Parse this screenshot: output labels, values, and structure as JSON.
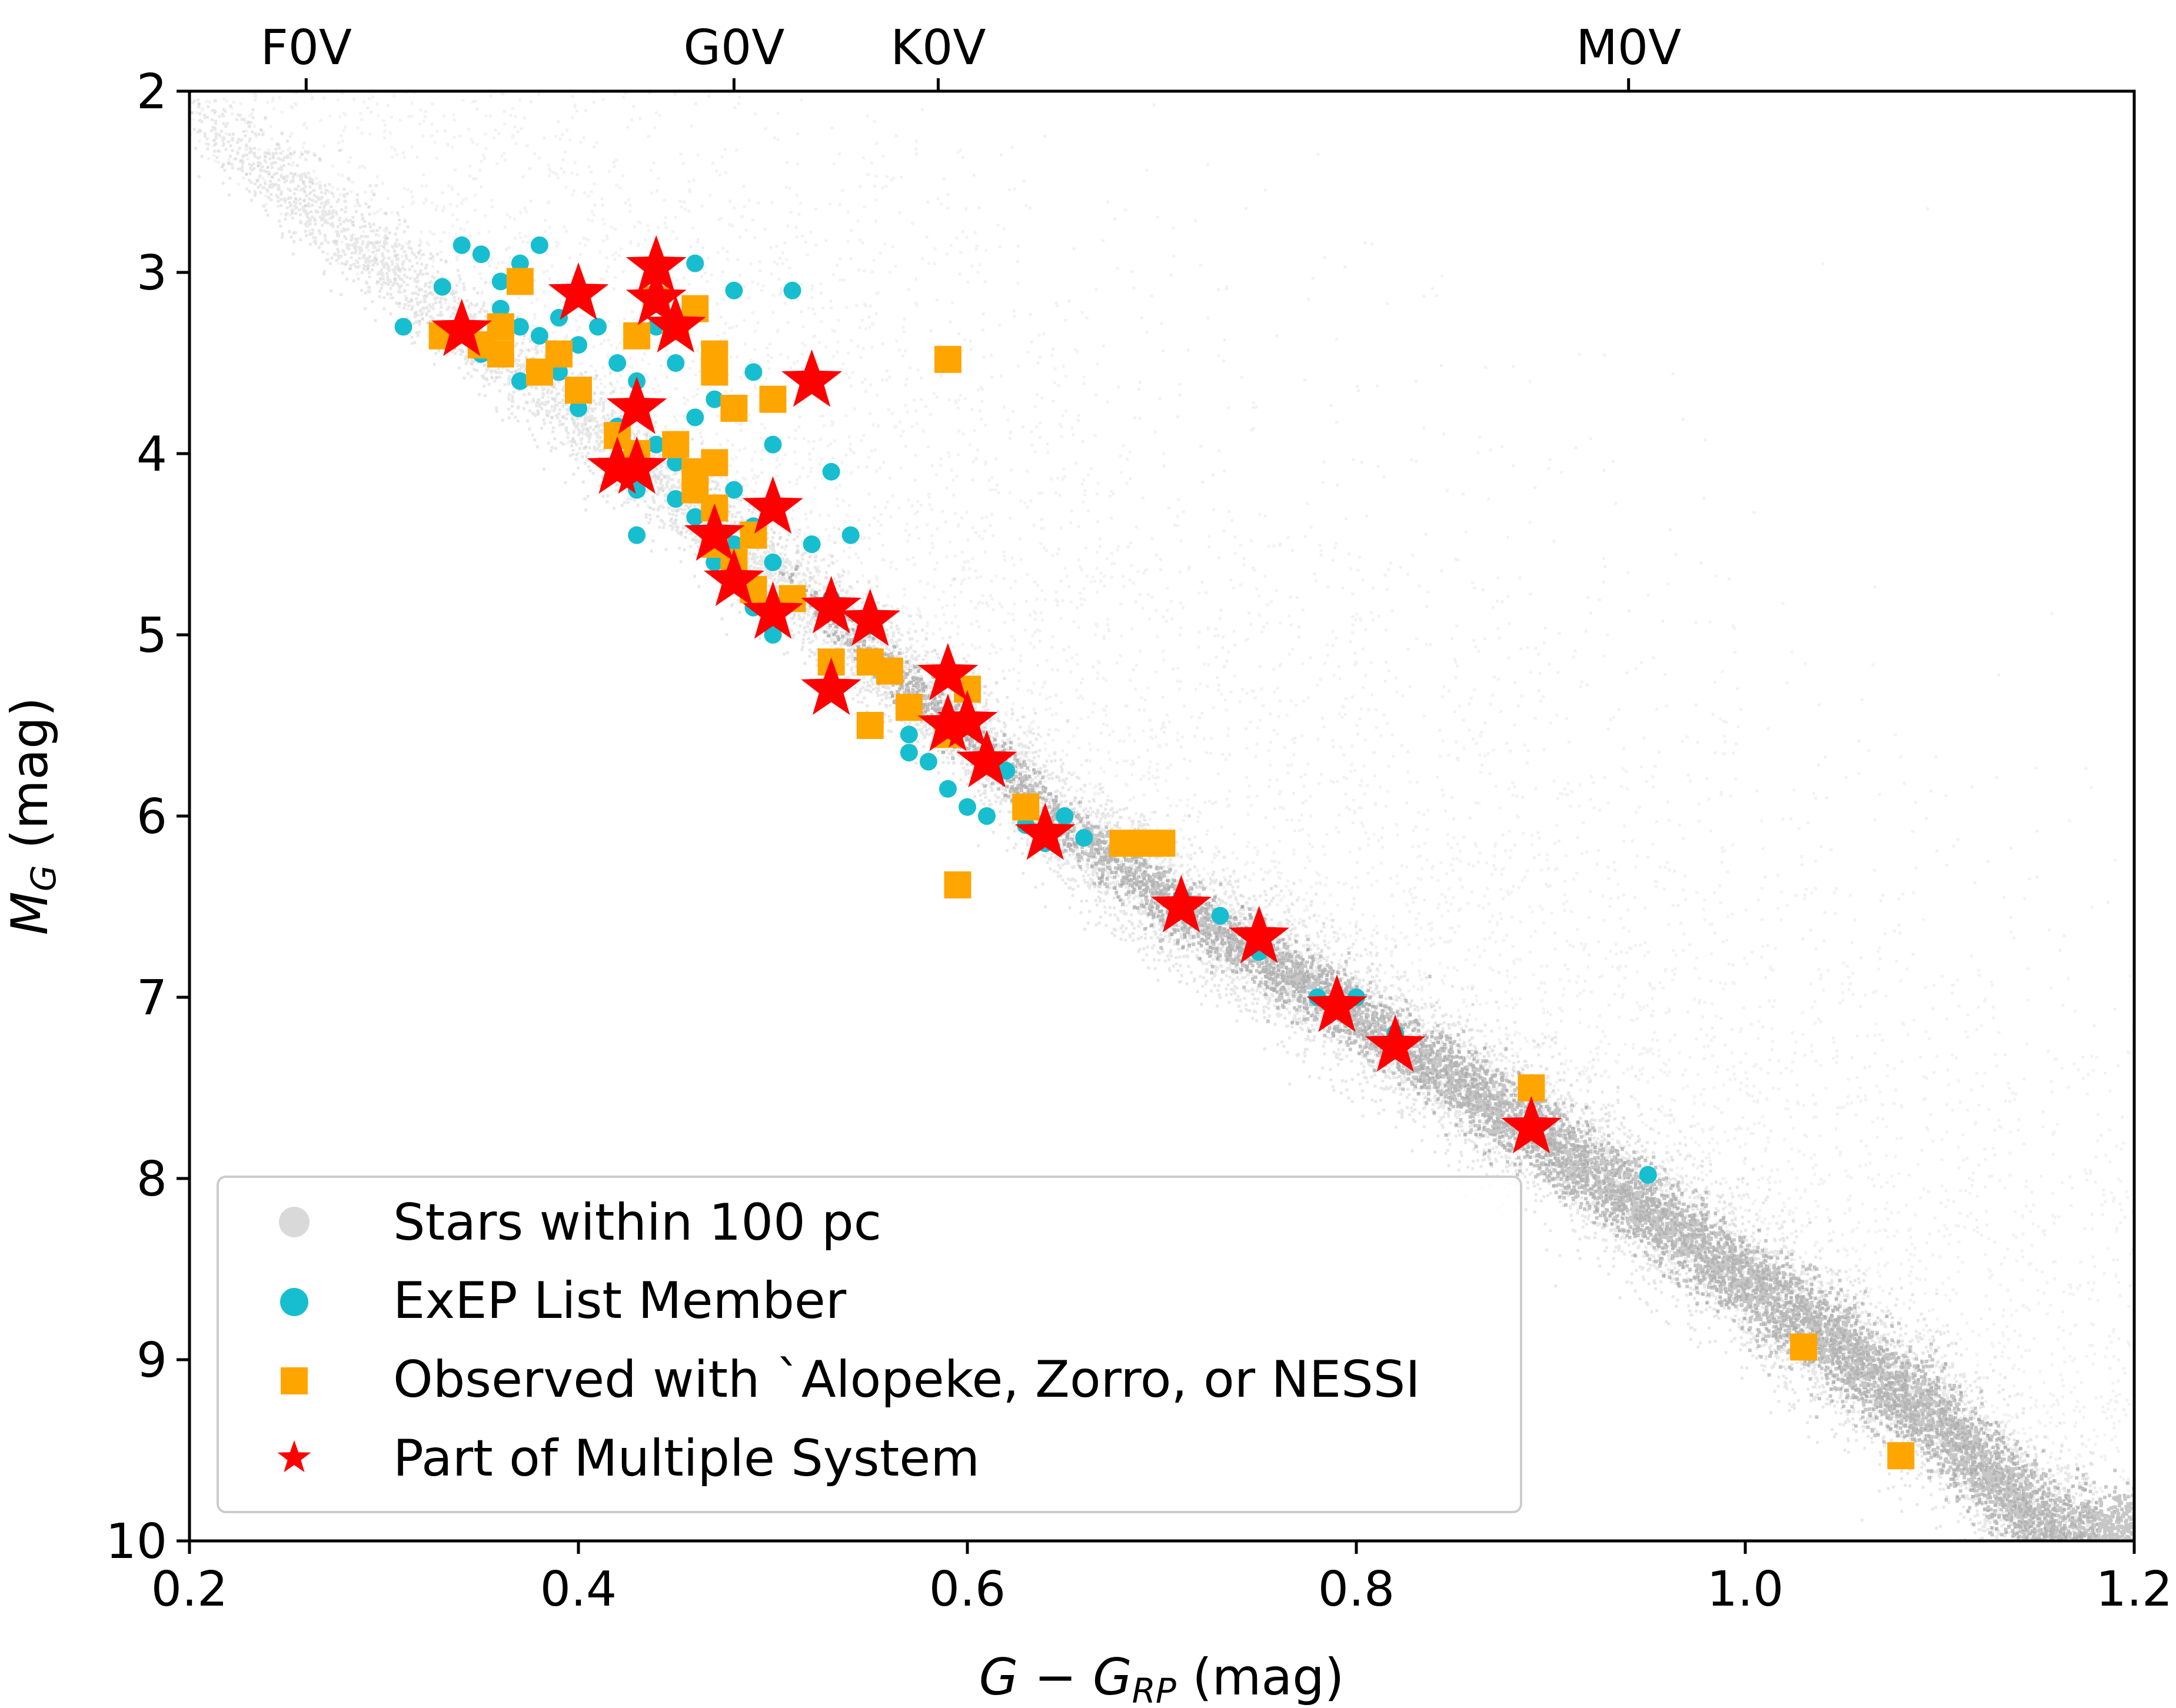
{
  "chart_data": {
    "type": "scatter",
    "xlabel": "G − G",
    "xlabel_sub": "RP",
    "xlabel_unit": " (mag)",
    "ylabel": "M",
    "ylabel_sub": "G",
    "ylabel_unit": " (mag)",
    "xlim": [
      0.2,
      1.2
    ],
    "ylim": [
      10,
      2
    ],
    "x_ticks": [
      0.2,
      0.4,
      0.6,
      0.8,
      1.0,
      1.2
    ],
    "x_tick_labels": [
      "0.2",
      "0.4",
      "0.6",
      "0.8",
      "1.0",
      "1.2"
    ],
    "y_ticks": [
      2,
      3,
      4,
      5,
      6,
      7,
      8,
      9,
      10
    ],
    "y_tick_labels": [
      "2",
      "3",
      "4",
      "5",
      "6",
      "7",
      "8",
      "9",
      "10"
    ],
    "top_axis": {
      "ticks": [
        0.26,
        0.48,
        0.585,
        0.94
      ],
      "labels": [
        "F0V",
        "G0V",
        "K0V",
        "M0V"
      ]
    },
    "legend": {
      "placement": "lower-left",
      "entries": [
        "Stars within 100 pc",
        "ExEP List Member",
        "Observed with `Alopeke, Zorro, or NESSI",
        "Part of Multiple System"
      ]
    },
    "colors": {
      "background_stars": "#000000",
      "exep": "#17becf",
      "observed": "#ffa500",
      "multiple": "#ff0000"
    },
    "series": [
      {
        "name": "ExEP List Member",
        "marker": "circle",
        "points": [
          [
            0.31,
            3.3
          ],
          [
            0.33,
            3.08
          ],
          [
            0.34,
            2.85
          ],
          [
            0.35,
            2.9
          ],
          [
            0.36,
            3.05
          ],
          [
            0.37,
            2.95
          ],
          [
            0.38,
            2.85
          ],
          [
            0.36,
            3.2
          ],
          [
            0.37,
            3.3
          ],
          [
            0.35,
            3.45
          ],
          [
            0.37,
            3.6
          ],
          [
            0.38,
            3.35
          ],
          [
            0.39,
            3.25
          ],
          [
            0.4,
            3.4
          ],
          [
            0.41,
            3.3
          ],
          [
            0.42,
            3.5
          ],
          [
            0.39,
            3.55
          ],
          [
            0.4,
            3.75
          ],
          [
            0.43,
            3.6
          ],
          [
            0.42,
            3.85
          ],
          [
            0.44,
            3.95
          ],
          [
            0.45,
            4.05
          ],
          [
            0.43,
            4.2
          ],
          [
            0.45,
            4.25
          ],
          [
            0.46,
            4.35
          ],
          [
            0.43,
            4.45
          ],
          [
            0.47,
            4.3
          ],
          [
            0.48,
            4.5
          ],
          [
            0.47,
            4.6
          ],
          [
            0.49,
            4.4
          ],
          [
            0.5,
            4.6
          ],
          [
            0.52,
            4.5
          ],
          [
            0.49,
            4.85
          ],
          [
            0.5,
            5.0
          ],
          [
            0.53,
            4.8
          ],
          [
            0.55,
            4.95
          ],
          [
            0.53,
            4.1
          ],
          [
            0.54,
            4.45
          ],
          [
            0.51,
            3.1
          ],
          [
            0.5,
            3.95
          ],
          [
            0.48,
            3.1
          ],
          [
            0.46,
            2.95
          ],
          [
            0.47,
            3.7
          ],
          [
            0.49,
            3.55
          ],
          [
            0.56,
            5.2
          ],
          [
            0.57,
            5.55
          ],
          [
            0.57,
            5.65
          ],
          [
            0.58,
            5.7
          ],
          [
            0.59,
            5.55
          ],
          [
            0.59,
            5.85
          ],
          [
            0.6,
            5.95
          ],
          [
            0.61,
            6.0
          ],
          [
            0.62,
            5.75
          ],
          [
            0.63,
            6.05
          ],
          [
            0.64,
            6.15
          ],
          [
            0.65,
            6.0
          ],
          [
            0.66,
            6.12
          ],
          [
            0.71,
            6.45
          ],
          [
            0.73,
            6.55
          ],
          [
            0.75,
            6.75
          ],
          [
            0.78,
            7.0
          ],
          [
            0.8,
            7.0
          ],
          [
            0.82,
            7.2
          ],
          [
            0.95,
            7.98
          ],
          [
            0.44,
            3.3
          ],
          [
            0.45,
            3.5
          ],
          [
            0.46,
            3.8
          ],
          [
            0.48,
            4.2
          ]
        ]
      },
      {
        "name": "Observed with `Alopeke, Zorro, or NESSI",
        "marker": "square",
        "points": [
          [
            0.33,
            3.35
          ],
          [
            0.35,
            3.4
          ],
          [
            0.36,
            3.45
          ],
          [
            0.36,
            3.3
          ],
          [
            0.37,
            3.05
          ],
          [
            0.38,
            3.55
          ],
          [
            0.39,
            3.45
          ],
          [
            0.4,
            3.65
          ],
          [
            0.43,
            3.35
          ],
          [
            0.44,
            3.15
          ],
          [
            0.45,
            3.3
          ],
          [
            0.46,
            3.2
          ],
          [
            0.47,
            3.45
          ],
          [
            0.47,
            3.55
          ],
          [
            0.48,
            3.75
          ],
          [
            0.5,
            3.7
          ],
          [
            0.42,
            3.9
          ],
          [
            0.43,
            4.0
          ],
          [
            0.45,
            3.95
          ],
          [
            0.46,
            4.1
          ],
          [
            0.47,
            4.05
          ],
          [
            0.46,
            4.2
          ],
          [
            0.47,
            4.3
          ],
          [
            0.47,
            4.5
          ],
          [
            0.49,
            4.45
          ],
          [
            0.48,
            4.6
          ],
          [
            0.49,
            4.75
          ],
          [
            0.51,
            4.8
          ],
          [
            0.53,
            5.15
          ],
          [
            0.55,
            5.15
          ],
          [
            0.56,
            5.2
          ],
          [
            0.55,
            5.5
          ],
          [
            0.57,
            5.4
          ],
          [
            0.59,
            5.55
          ],
          [
            0.6,
            5.3
          ],
          [
            0.63,
            5.95
          ],
          [
            0.68,
            6.15
          ],
          [
            0.69,
            6.15
          ],
          [
            0.7,
            6.15
          ],
          [
            0.59,
            3.48
          ],
          [
            0.595,
            6.38
          ],
          [
            0.89,
            7.5
          ],
          [
            1.03,
            8.93
          ],
          [
            1.08,
            9.53
          ]
        ]
      },
      {
        "name": "Part of Multiple System",
        "marker": "star",
        "points": [
          [
            0.34,
            3.32
          ],
          [
            0.4,
            3.12
          ],
          [
            0.44,
            2.97
          ],
          [
            0.44,
            3.15
          ],
          [
            0.45,
            3.3
          ],
          [
            0.43,
            3.75
          ],
          [
            0.42,
            4.08
          ],
          [
            0.43,
            4.08
          ],
          [
            0.52,
            3.6
          ],
          [
            0.5,
            4.3
          ],
          [
            0.47,
            4.45
          ],
          [
            0.48,
            4.7
          ],
          [
            0.5,
            4.88
          ],
          [
            0.53,
            4.85
          ],
          [
            0.55,
            4.92
          ],
          [
            0.53,
            5.3
          ],
          [
            0.59,
            5.22
          ],
          [
            0.6,
            5.48
          ],
          [
            0.59,
            5.5
          ],
          [
            0.61,
            5.7
          ],
          [
            0.64,
            6.1
          ],
          [
            0.71,
            6.5
          ],
          [
            0.75,
            6.67
          ],
          [
            0.79,
            7.05
          ],
          [
            0.82,
            7.27
          ],
          [
            0.89,
            7.72
          ]
        ]
      }
    ],
    "background": {
      "name": "Stars within 100 pc",
      "description_points": "main-sequence band density ridge",
      "ridge": [
        [
          0.2,
          2.1
        ],
        [
          0.3,
          2.95
        ],
        [
          0.4,
          3.8
        ],
        [
          0.5,
          4.65
        ],
        [
          0.55,
          5.1
        ],
        [
          0.6,
          5.55
        ],
        [
          0.65,
          6.05
        ],
        [
          0.7,
          6.45
        ],
        [
          0.8,
          7.1
        ],
        [
          0.9,
          7.8
        ],
        [
          1.0,
          8.55
        ],
        [
          1.1,
          9.35
        ],
        [
          1.16,
          10.0
        ]
      ]
    }
  }
}
